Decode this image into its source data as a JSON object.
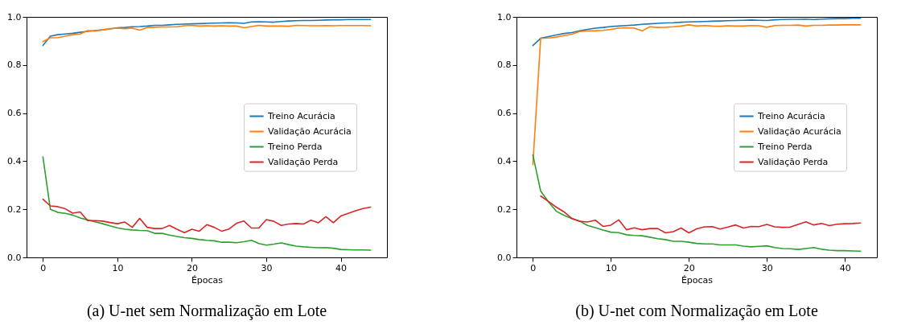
{
  "chart_data": [
    {
      "type": "line",
      "title": "(a) U-net sem Normalização em Lote",
      "xlabel": "Épocas",
      "legend": "right",
      "grid": false,
      "line_style": "solid",
      "marker": "none",
      "x": [
        0,
        1,
        2,
        3,
        4,
        5,
        6,
        7,
        8,
        9,
        10,
        11,
        12,
        13,
        14,
        15,
        16,
        17,
        18,
        19,
        20,
        21,
        22,
        23,
        24,
        25,
        26,
        27,
        28,
        29,
        30,
        31,
        32,
        33,
        34,
        35,
        36,
        37,
        38,
        39,
        40,
        41,
        42,
        43,
        44
      ],
      "xlim": [
        -2.2,
        46.2
      ],
      "xticks": [
        0,
        10,
        20,
        30,
        40
      ],
      "ylim": [
        0,
        1
      ],
      "yticks": [
        {
          "value": 0,
          "label": "0.0"
        },
        {
          "value": 0.2,
          "label": "0.2"
        },
        {
          "value": 0.4,
          "label": "0.4"
        },
        {
          "value": 0.6,
          "label": "0.6"
        },
        {
          "value": 0.8,
          "label": "0.8"
        },
        {
          "value": 1,
          "label": "1.0"
        }
      ],
      "series": [
        {
          "name": "Treino Acurácia",
          "color": "#1f77b4",
          "values": [
            0.881,
            0.92,
            0.926,
            0.929,
            0.932,
            0.936,
            0.94,
            0.943,
            0.946,
            0.95,
            0.955,
            0.956,
            0.959,
            0.96,
            0.962,
            0.965,
            0.965,
            0.967,
            0.969,
            0.97,
            0.971,
            0.972,
            0.973,
            0.974,
            0.975,
            0.976,
            0.975,
            0.973,
            0.979,
            0.98,
            0.979,
            0.978,
            0.981,
            0.983,
            0.984,
            0.985,
            0.985,
            0.986,
            0.987,
            0.988,
            0.988,
            0.989,
            0.989,
            0.989,
            0.989
          ]
        },
        {
          "name": "Validação Acurácia",
          "color": "#ff7f0e",
          "values": [
            0.897,
            0.913,
            0.914,
            0.92,
            0.926,
            0.929,
            0.943,
            0.941,
            0.946,
            0.951,
            0.953,
            0.951,
            0.953,
            0.945,
            0.956,
            0.957,
            0.958,
            0.958,
            0.959,
            0.963,
            0.965,
            0.962,
            0.963,
            0.962,
            0.963,
            0.962,
            0.962,
            0.955,
            0.96,
            0.965,
            0.962,
            0.962,
            0.962,
            0.961,
            0.965,
            0.964,
            0.963,
            0.963,
            0.964,
            0.963,
            0.964,
            0.964,
            0.964,
            0.964,
            0.963
          ]
        },
        {
          "name": "Treino Perda",
          "color": "#2ca02c",
          "values": [
            0.418,
            0.2,
            0.187,
            0.183,
            0.176,
            0.164,
            0.156,
            0.148,
            0.14,
            0.131,
            0.123,
            0.117,
            0.114,
            0.112,
            0.111,
            0.1,
            0.1,
            0.093,
            0.087,
            0.082,
            0.079,
            0.074,
            0.071,
            0.069,
            0.063,
            0.063,
            0.061,
            0.065,
            0.071,
            0.058,
            0.051,
            0.055,
            0.06,
            0.053,
            0.047,
            0.044,
            0.042,
            0.04,
            0.041,
            0.038,
            0.033,
            0.032,
            0.031,
            0.031,
            0.03
          ]
        },
        {
          "name": "Validação Perda",
          "color": "#d62728",
          "values": [
            0.242,
            0.214,
            0.211,
            0.202,
            0.184,
            0.189,
            0.153,
            0.153,
            0.151,
            0.145,
            0.14,
            0.147,
            0.125,
            0.162,
            0.125,
            0.12,
            0.12,
            0.133,
            0.117,
            0.103,
            0.117,
            0.109,
            0.136,
            0.125,
            0.109,
            0.118,
            0.142,
            0.151,
            0.122,
            0.122,
            0.157,
            0.15,
            0.133,
            0.139,
            0.141,
            0.139,
            0.155,
            0.144,
            0.169,
            0.144,
            0.172,
            0.183,
            0.194,
            0.203,
            0.209
          ]
        }
      ]
    },
    {
      "type": "line",
      "title": "(b) U-net com Normalização em Lote",
      "xlabel": "Épocas",
      "legend": "right",
      "grid": false,
      "line_style": "solid",
      "marker": "none",
      "x": [
        0,
        1,
        2,
        3,
        4,
        5,
        6,
        7,
        8,
        9,
        10,
        11,
        12,
        13,
        14,
        15,
        16,
        17,
        18,
        19,
        20,
        21,
        22,
        23,
        24,
        25,
        26,
        27,
        28,
        29,
        30,
        31,
        32,
        33,
        34,
        35,
        36,
        37,
        38,
        39,
        40,
        41,
        42
      ],
      "xlim": [
        -2.1,
        44.1
      ],
      "xticks": [
        0,
        10,
        20,
        30,
        40
      ],
      "ylim": [
        0,
        1
      ],
      "yticks": [
        {
          "value": 0,
          "label": "0.0"
        },
        {
          "value": 0.2,
          "label": "0.2"
        },
        {
          "value": 0.4,
          "label": "0.4"
        },
        {
          "value": 0.6,
          "label": "0.6"
        },
        {
          "value": 0.8,
          "label": "0.8"
        },
        {
          "value": 1,
          "label": "1.0"
        }
      ],
      "series": [
        {
          "name": "Treino Acurácia",
          "color": "#1f77b4",
          "values": [
            0.881,
            0.911,
            0.918,
            0.925,
            0.931,
            0.935,
            0.942,
            0.948,
            0.953,
            0.956,
            0.96,
            0.962,
            0.964,
            0.966,
            0.969,
            0.971,
            0.973,
            0.975,
            0.976,
            0.978,
            0.979,
            0.98,
            0.981,
            0.982,
            0.983,
            0.984,
            0.985,
            0.986,
            0.987,
            0.986,
            0.985,
            0.988,
            0.989,
            0.99,
            0.99,
            0.991,
            0.989,
            0.991,
            0.992,
            0.993,
            0.993,
            0.994,
            0.994
          ]
        },
        {
          "name": "Validação Acurácia",
          "color": "#ff7f0e",
          "values": [
            0.386,
            0.911,
            0.912,
            0.916,
            0.922,
            0.928,
            0.939,
            0.942,
            0.942,
            0.944,
            0.948,
            0.953,
            0.955,
            0.953,
            0.942,
            0.959,
            0.956,
            0.957,
            0.959,
            0.962,
            0.967,
            0.962,
            0.964,
            0.962,
            0.961,
            0.963,
            0.962,
            0.962,
            0.964,
            0.963,
            0.957,
            0.964,
            0.965,
            0.965,
            0.966,
            0.962,
            0.965,
            0.965,
            0.966,
            0.966,
            0.967,
            0.967,
            0.967
          ]
        },
        {
          "name": "Treino Perda",
          "color": "#2ca02c",
          "values": [
            0.426,
            0.276,
            0.231,
            0.192,
            0.175,
            0.161,
            0.151,
            0.133,
            0.124,
            0.114,
            0.105,
            0.103,
            0.094,
            0.091,
            0.09,
            0.084,
            0.078,
            0.074,
            0.067,
            0.067,
            0.063,
            0.058,
            0.056,
            0.056,
            0.052,
            0.052,
            0.052,
            0.047,
            0.044,
            0.046,
            0.048,
            0.041,
            0.037,
            0.036,
            0.033,
            0.037,
            0.041,
            0.034,
            0.03,
            0.028,
            0.028,
            0.027,
            0.026
          ]
        },
        {
          "name": "Validação Perda",
          "color": "#d62728",
          "values": [
            null,
            0.255,
            0.233,
            0.209,
            0.189,
            0.162,
            0.15,
            0.147,
            0.155,
            0.129,
            0.134,
            0.156,
            0.115,
            0.123,
            0.115,
            0.12,
            0.12,
            0.102,
            0.107,
            0.122,
            0.102,
            0.119,
            0.127,
            0.128,
            0.118,
            0.126,
            0.135,
            0.122,
            0.129,
            0.128,
            0.137,
            0.127,
            0.125,
            0.126,
            0.137,
            0.148,
            0.135,
            0.141,
            0.132,
            0.138,
            0.14,
            0.141,
            0.143
          ]
        }
      ]
    }
  ]
}
